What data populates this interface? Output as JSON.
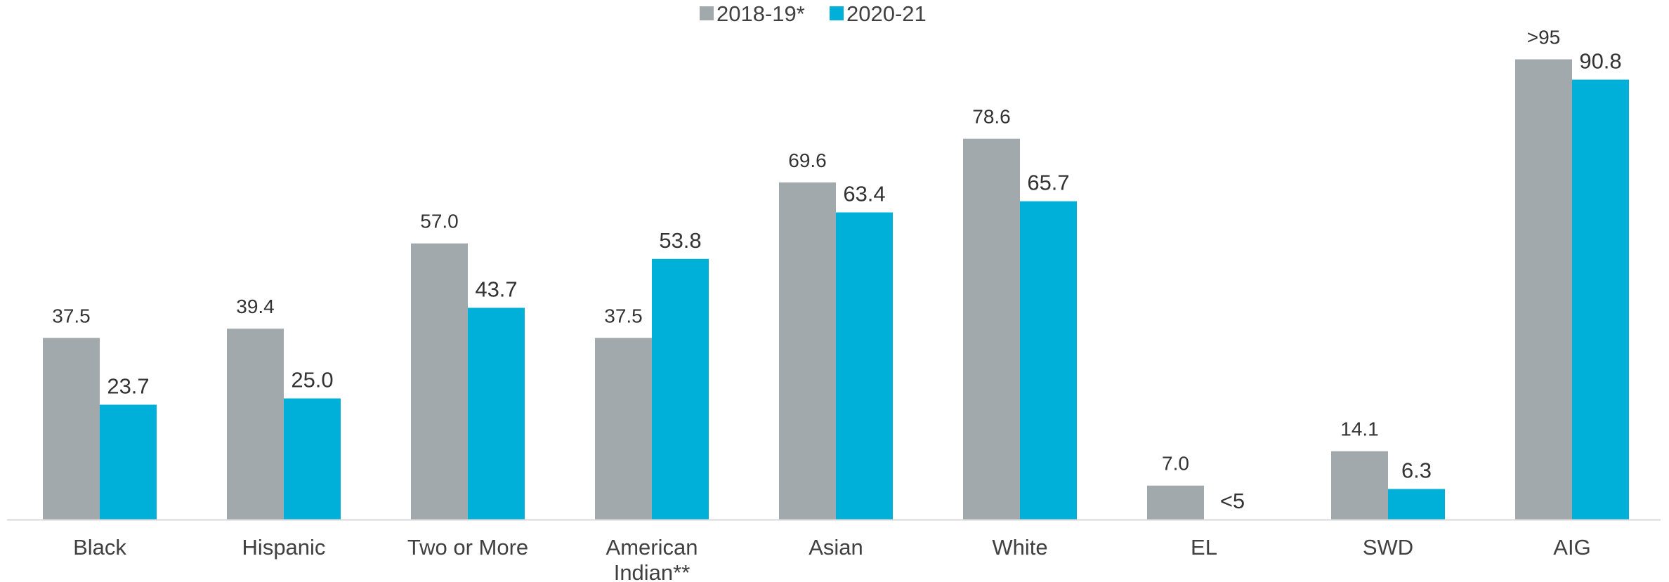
{
  "chart_data": {
    "type": "bar",
    "title": "",
    "xlabel": "",
    "ylabel": "",
    "ylim": [
      0,
      100
    ],
    "grid": false,
    "legend_position": "top-center",
    "categories": [
      "Black",
      "Hispanic",
      "Two or More",
      "American Indian**",
      "Asian",
      "White",
      "EL",
      "SWD",
      "AIG"
    ],
    "category_label_lines": [
      [
        "Black"
      ],
      [
        "Hispanic"
      ],
      [
        "Two or More"
      ],
      [
        "American",
        "Indian**"
      ],
      [
        "Asian"
      ],
      [
        "White"
      ],
      [
        "EL"
      ],
      [
        "SWD"
      ],
      [
        "AIG"
      ]
    ],
    "series": [
      {
        "name": "2018-19*",
        "color": "#a2a9ad",
        "values": [
          37.5,
          39.4,
          57.0,
          37.5,
          69.6,
          78.6,
          7.0,
          14.1,
          95
        ],
        "labels": [
          "37.5",
          "39.4",
          "57.0",
          "37.5",
          "69.6",
          "78.6",
          "7.0",
          "14.1",
          ">95"
        ]
      },
      {
        "name": "2020-21",
        "color": "#00b0d8",
        "values": [
          23.7,
          25.0,
          43.7,
          53.8,
          63.4,
          65.7,
          0,
          6.3,
          90.8
        ],
        "labels": [
          "23.7",
          "25.0",
          "43.7",
          "53.8",
          "63.4",
          "65.7",
          "<5",
          "6.3",
          "90.8"
        ]
      }
    ],
    "axis_color": "#d9d9d9"
  }
}
